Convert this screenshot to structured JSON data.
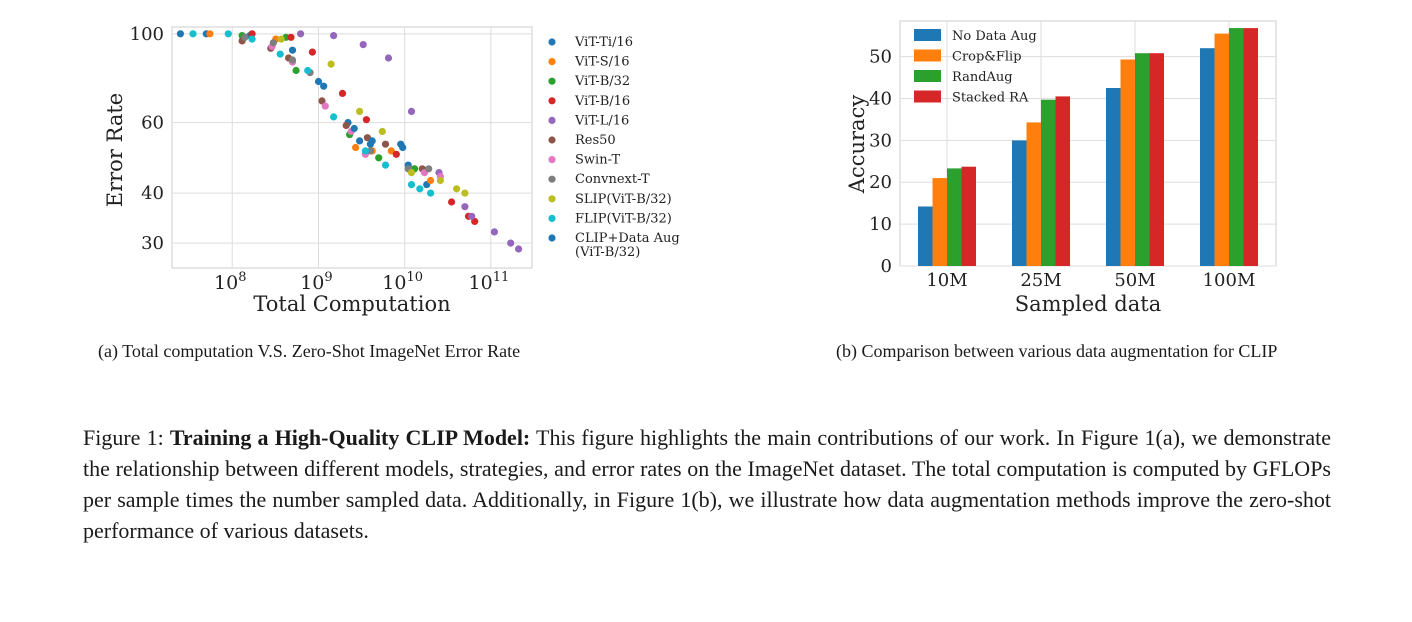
{
  "subfig_a": {
    "caption": "(a) Total computation V.S. Zero-Shot ImageNet Error Rate",
    "chart": {
      "type": "scatter",
      "xlabel": "Total Computation",
      "ylabel": "Error Rate",
      "x_scale": "log",
      "y_scale": "log",
      "xlim": [
        20000000.0,
        300000000000.0
      ],
      "ylim": [
        26,
        104
      ],
      "x_ticks": [
        {
          "value": 100000000.0,
          "base": "10",
          "exp": "8"
        },
        {
          "value": 1000000000.0,
          "base": "10",
          "exp": "9"
        },
        {
          "value": 10000000000.0,
          "base": "10",
          "exp": "10"
        },
        {
          "value": 100000000000.0,
          "base": "10",
          "exp": "11"
        }
      ],
      "y_ticks": [
        {
          "value": 100,
          "label": "100"
        },
        {
          "value": 60,
          "label": "60"
        },
        {
          "value": 40,
          "label": "40"
        },
        {
          "value": 30,
          "label": "30"
        }
      ],
      "grid": true,
      "legend_position": "right-outside",
      "series": [
        {
          "name": "ViT-Ti/16",
          "color": "#1f77b4",
          "points": [
            [
              25000000.0,
              100
            ],
            [
              50000000.0,
              100
            ],
            [
              160000000.0,
              99
            ],
            [
              2200000000.0,
              60
            ],
            [
              3000000000.0,
              54
            ],
            [
              4000000000.0,
              53
            ],
            [
              9000000000.0,
              53
            ],
            [
              11000000000.0,
              47
            ],
            [
              18000000000.0,
              42
            ]
          ]
        },
        {
          "name": "ViT-S/16",
          "color": "#ff7f0e",
          "points": [
            [
              55000000.0,
              100
            ],
            [
              320000000.0,
              97
            ],
            [
              2700000000.0,
              52
            ],
            [
              4200000000.0,
              51
            ],
            [
              7000000000.0,
              51
            ],
            [
              13000000000.0,
              46
            ],
            [
              20000000000.0,
              43
            ]
          ]
        },
        {
          "name": "ViT-B/32",
          "color": "#2ca02c",
          "points": [
            [
              130000000.0,
              99
            ],
            [
              420000000.0,
              98
            ],
            [
              550000000.0,
              81
            ],
            [
              2300000000.0,
              56
            ],
            [
              5000000000.0,
              49
            ],
            [
              13000000000.0,
              46
            ]
          ]
        },
        {
          "name": "ViT-B/16",
          "color": "#d62728",
          "points": [
            [
              170000000.0,
              100
            ],
            [
              480000000.0,
              98
            ],
            [
              850000000.0,
              90
            ],
            [
              1900000000.0,
              71
            ],
            [
              3600000000.0,
              61
            ],
            [
              8000000000.0,
              50
            ],
            [
              35000000000.0,
              38
            ],
            [
              55000000000.0,
              35
            ],
            [
              65000000000.0,
              34
            ]
          ]
        },
        {
          "name": "ViT-L/16",
          "color": "#9467bd",
          "points": [
            [
              620000000.0,
              100
            ],
            [
              1500000000.0,
              99
            ],
            [
              3300000000.0,
              94
            ],
            [
              6500000000.0,
              87
            ],
            [
              12000000000.0,
              64
            ],
            [
              25000000000.0,
              45
            ],
            [
              50000000000.0,
              37
            ],
            [
              60000000000.0,
              35
            ],
            [
              110000000000.0,
              32
            ],
            [
              170000000000.0,
              30
            ],
            [
              210000000000.0,
              29
            ]
          ]
        },
        {
          "name": "Res50",
          "color": "#8c564b",
          "points": [
            [
              130000000.0,
              96
            ],
            [
              280000000.0,
              92
            ],
            [
              450000000.0,
              87
            ],
            [
              1100000000.0,
              68
            ],
            [
              2100000000.0,
              59
            ],
            [
              3700000000.0,
              55
            ],
            [
              6000000000.0,
              53
            ],
            [
              16000000000.0,
              46
            ]
          ]
        },
        {
          "name": "Swin-T",
          "color": "#e377c2",
          "points": [
            [
              290000000.0,
              93
            ],
            [
              500000000.0,
              85
            ],
            [
              1200000000.0,
              66
            ],
            [
              2400000000.0,
              57
            ],
            [
              3500000000.0,
              50
            ],
            [
              17000000000.0,
              45
            ],
            [
              26000000000.0,
              44
            ]
          ]
        },
        {
          "name": "Convnext-T",
          "color": "#7f7f7f",
          "points": [
            [
              140000000.0,
              98
            ],
            [
              300000000.0,
              95
            ],
            [
              500000000.0,
              86
            ],
            [
              800000000.0,
              80
            ],
            [
              4000000000.0,
              51
            ],
            [
              11000000000.0,
              46
            ],
            [
              19000000000.0,
              46
            ]
          ]
        },
        {
          "name": "SLIP(ViT-B/32)",
          "color": "#bcbd22",
          "points": [
            [
              370000000.0,
              97
            ],
            [
              1400000000.0,
              84
            ],
            [
              3000000000.0,
              64
            ],
            [
              5500000000.0,
              57
            ],
            [
              12000000000.0,
              45
            ],
            [
              26000000000.0,
              43
            ],
            [
              40000000000.0,
              41
            ],
            [
              50000000000.0,
              40
            ]
          ]
        },
        {
          "name": "FLIP(ViT-B/32)",
          "color": "#17becf",
          "points": [
            [
              35000000.0,
              100
            ],
            [
              90000000.0,
              100
            ],
            [
              170000000.0,
              97
            ],
            [
              360000000.0,
              89
            ],
            [
              750000000.0,
              81
            ],
            [
              1500000000.0,
              62
            ],
            [
              3500000000.0,
              51
            ],
            [
              6000000000.0,
              47
            ],
            [
              12000000000.0,
              42
            ],
            [
              15000000000.0,
              41
            ],
            [
              20000000000.0,
              40
            ]
          ]
        },
        {
          "name": "CLIP+Data Aug",
          "name_line2": "(ViT-B/32)",
          "color": "#1f77b4",
          "points": [
            [
              500000000.0,
              91
            ],
            [
              1000000000.0,
              76
            ],
            [
              1150000000.0,
              74
            ],
            [
              2600000000.0,
              58
            ],
            [
              4200000000.0,
              54
            ],
            [
              9500000000.0,
              52
            ]
          ]
        }
      ]
    }
  },
  "subfig_b": {
    "caption": "(b) Comparison between various data augmentation for CLIP",
    "chart": {
      "type": "bar",
      "xlabel": "Sampled data",
      "ylabel": "Accuracy",
      "categories": [
        "10M",
        "25M",
        "50M",
        "100M"
      ],
      "ylim": [
        0,
        58.5
      ],
      "y_ticks": [
        "0",
        "10",
        "20",
        "30",
        "40",
        "50"
      ],
      "grid": true,
      "legend_position": "top-left",
      "series": [
        {
          "name": "No Data Aug",
          "color": "#1f77b4",
          "values": [
            14.2,
            30.0,
            42.5,
            52.0
          ]
        },
        {
          "name": "Crop&Flip",
          "color": "#ff7f0e",
          "values": [
            21.0,
            34.3,
            49.3,
            55.5
          ]
        },
        {
          "name": "RandAug",
          "color": "#2ca02c",
          "values": [
            23.3,
            39.7,
            50.8,
            56.8
          ]
        },
        {
          "name": "Stacked RA",
          "color": "#d62728",
          "values": [
            23.7,
            40.5,
            50.8,
            56.8
          ]
        }
      ]
    }
  },
  "figure_caption": {
    "prefix": "Figure 1: ",
    "title": "Training a High-Quality CLIP Model:",
    "body": " This figure highlights the main contributions of our work. In Figure 1(a), we demonstrate the relationship between different models, strategies, and error rates on the ImageNet dataset. The total computation is computed by GFLOPs per sample times the number sampled data. Additionally, in Figure 1(b), we illustrate how data augmentation methods improve the zero-shot performance of various datasets."
  }
}
